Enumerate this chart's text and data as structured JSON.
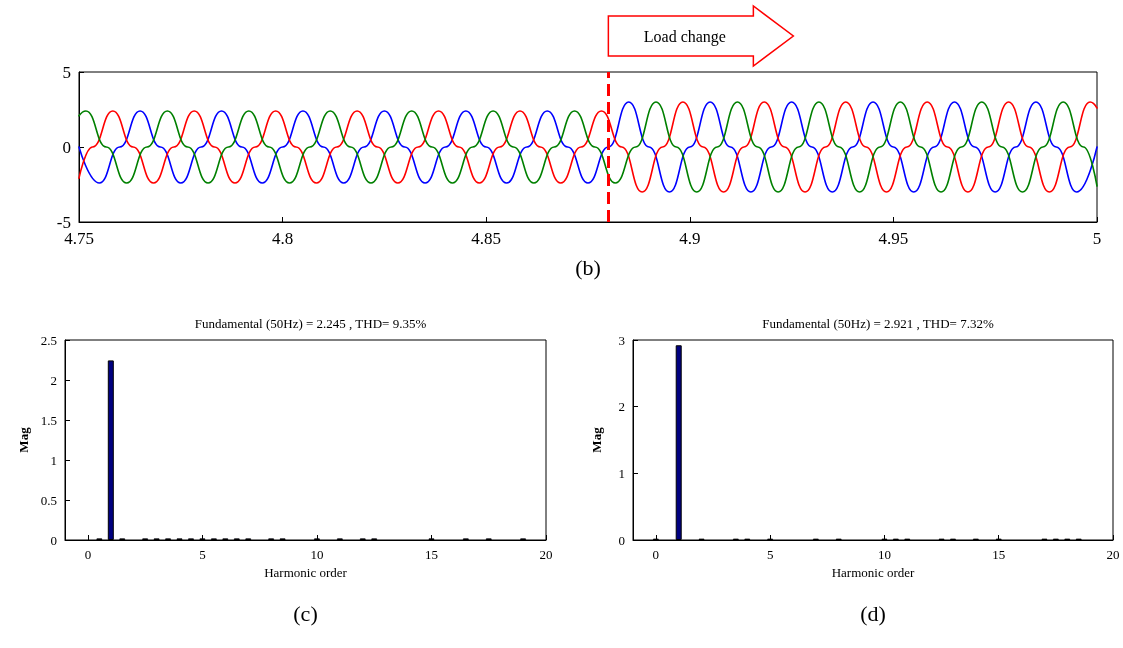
{
  "chart_data": [
    {
      "type": "line",
      "annotations": [
        "Load change",
        "(b)"
      ],
      "xlim": [
        4.75,
        5
      ],
      "xticks": [
        4.75,
        4.8,
        4.85,
        4.9,
        4.95,
        5
      ],
      "ylim": [
        -5,
        5
      ],
      "yticks": [
        -5,
        0,
        5
      ],
      "marker": "none",
      "line_style": "solid",
      "ref_lines": [
        {
          "axis": "x",
          "value": 4.88,
          "color": "#ff0000",
          "line_style": "dashed"
        }
      ],
      "series": [
        {
          "color": "#0000ff",
          "x": [
            4.75,
            4.755,
            4.76,
            4.765,
            4.77,
            4.775,
            4.78,
            4.785,
            4.79,
            4.795,
            4.8,
            4.805,
            4.81,
            4.815,
            4.82,
            4.825,
            4.83,
            4.835,
            4.84,
            4.845,
            4.85,
            4.855,
            4.86,
            4.865,
            4.87,
            4.875,
            4.88,
            4.885,
            4.89,
            4.895,
            4.9,
            4.905,
            4.91,
            4.915,
            4.92,
            4.925,
            4.93,
            4.935,
            4.94,
            4.945,
            4.95,
            4.955,
            4.96,
            4.965,
            4.97,
            4.975,
            4.98,
            4.985,
            4.99,
            4.995,
            5
          ],
          "values": [
            0,
            -2.4,
            0,
            2.4,
            0,
            -2.4,
            0,
            2.4,
            0,
            -2.4,
            0,
            2.4,
            0,
            -2.4,
            0,
            2.4,
            0,
            -2.4,
            0,
            2.4,
            0,
            -2.4,
            0,
            2.4,
            0,
            -2.4,
            0,
            3,
            0,
            -3,
            0,
            3,
            0,
            -3,
            0,
            3,
            0,
            -3,
            0,
            3,
            0,
            -3,
            0,
            3,
            0,
            -3,
            0,
            3,
            0,
            -3,
            0
          ]
        },
        {
          "color": "#ff0000",
          "x": [
            4.75,
            4.7533,
            4.7583,
            4.7633,
            4.7683,
            4.7733,
            4.7783,
            4.7833,
            4.7883,
            4.7933,
            4.7983,
            4.8033,
            4.8083,
            4.8133,
            4.8183,
            4.8233,
            4.8283,
            4.8333,
            4.8383,
            4.8433,
            4.8483,
            4.8533,
            4.8583,
            4.8633,
            4.8683,
            4.8733,
            4.8783,
            4.8833,
            4.8883,
            4.8933,
            4.8983,
            4.9033,
            4.9083,
            4.9133,
            4.9183,
            4.9233,
            4.9283,
            4.9333,
            4.9383,
            4.9433,
            4.9483,
            4.9533,
            4.9583,
            4.9633,
            4.9683,
            4.9733,
            4.9783,
            4.9833,
            4.9883,
            4.9933,
            4.9983,
            5
          ],
          "values": [
            -2.08,
            0,
            2.4,
            0,
            -2.4,
            0,
            2.4,
            0,
            -2.4,
            0,
            2.4,
            0,
            -2.4,
            0,
            2.4,
            0,
            -2.4,
            0,
            2.4,
            0,
            -2.4,
            0,
            2.4,
            0,
            -2.4,
            0,
            2.4,
            0,
            -3,
            0,
            3,
            0,
            -3,
            0,
            3,
            0,
            -3,
            0,
            3,
            0,
            -3,
            0,
            3,
            0,
            -3,
            0,
            3,
            0,
            -3,
            0,
            3,
            2.6
          ]
        },
        {
          "color": "#008000",
          "x": [
            4.75,
            4.7517,
            4.7567,
            4.7617,
            4.7667,
            4.7717,
            4.7767,
            4.7817,
            4.7867,
            4.7917,
            4.7967,
            4.8017,
            4.8067,
            4.8117,
            4.8167,
            4.8217,
            4.8267,
            4.8317,
            4.8367,
            4.8417,
            4.8467,
            4.8517,
            4.8567,
            4.8617,
            4.8667,
            4.8717,
            4.8767,
            4.8817,
            4.8867,
            4.8917,
            4.8967,
            4.9017,
            4.9067,
            4.9117,
            4.9167,
            4.9217,
            4.9267,
            4.9317,
            4.9367,
            4.9417,
            4.9467,
            4.9517,
            4.9567,
            4.9617,
            4.9667,
            4.9717,
            4.9767,
            4.9817,
            4.9867,
            4.9917,
            4.9967,
            5
          ],
          "values": [
            2.08,
            2.4,
            0,
            -2.4,
            0,
            2.4,
            0,
            -2.4,
            0,
            2.4,
            0,
            -2.4,
            0,
            2.4,
            0,
            -2.4,
            0,
            2.4,
            0,
            -2.4,
            0,
            2.4,
            0,
            -2.4,
            0,
            2.4,
            0,
            -2.4,
            0,
            3,
            0,
            -3,
            0,
            3,
            0,
            -3,
            0,
            3,
            0,
            -3,
            0,
            3,
            0,
            -3,
            0,
            3,
            0,
            -3,
            0,
            3,
            0,
            -2.6
          ]
        }
      ]
    },
    {
      "type": "bar",
      "title": "Fundamental (50Hz) = 2.245 , THD= 9.35%",
      "xlabel": "Harmonic order",
      "ylabel": "Mag",
      "annotations": [
        "(c)"
      ],
      "xlim": [
        -1,
        20
      ],
      "xticks": [
        0,
        5,
        10,
        15,
        20
      ],
      "ylim": [
        0,
        2.5
      ],
      "yticks": [
        0,
        0.5,
        1,
        1.5,
        2,
        2.5
      ],
      "color": "#000080",
      "x": [
        0.5,
        1,
        1.5,
        2.5,
        3,
        3.5,
        4,
        4.5,
        5,
        5.5,
        6,
        6.5,
        7,
        8,
        8.5,
        10,
        11,
        12,
        12.5,
        15,
        16.5,
        17.5,
        19
      ],
      "values": [
        0.02,
        2.245,
        0.02,
        0.02,
        0.02,
        0.02,
        0.02,
        0.02,
        0.02,
        0.02,
        0.02,
        0.02,
        0.02,
        0.02,
        0.02,
        0.02,
        0.02,
        0.02,
        0.02,
        0.02,
        0.02,
        0.02,
        0.02
      ]
    },
    {
      "type": "bar",
      "title": "Fundamental (50Hz) = 2.921 , THD= 7.32%",
      "xlabel": "Harmonic order",
      "ylabel": "Mag",
      "annotations": [
        "(d)"
      ],
      "xlim": [
        -1,
        20
      ],
      "xticks": [
        0,
        5,
        10,
        15,
        20
      ],
      "ylim": [
        0,
        3
      ],
      "yticks": [
        0,
        1,
        2,
        3
      ],
      "color": "#000080",
      "x": [
        0,
        1,
        2,
        3.5,
        4,
        5,
        7,
        8,
        10,
        10.5,
        11,
        12.5,
        13,
        14,
        15,
        17,
        17.5,
        18,
        18.5
      ],
      "values": [
        0.02,
        2.921,
        0.02,
        0.02,
        0.02,
        0.02,
        0.02,
        0.02,
        0.02,
        0.02,
        0.02,
        0.02,
        0.02,
        0.02,
        0.02,
        0.02,
        0.02,
        0.02,
        0.02
      ]
    }
  ]
}
